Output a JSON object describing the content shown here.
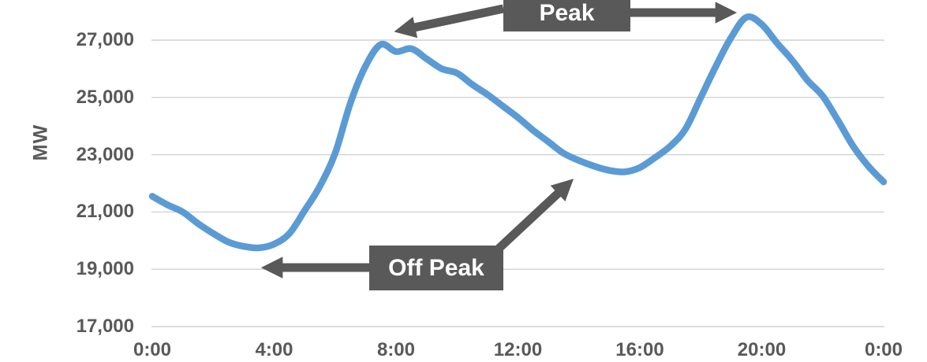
{
  "figure": {
    "background_color": "#FFFFFF",
    "text_color": "#595959",
    "gridline_color": "#D2D2D2"
  },
  "chart_data": {
    "type": "line",
    "title": "",
    "xlabel": "",
    "ylabel": "MW",
    "x_unit": "time of day (hours)",
    "grid": "horizontal",
    "legend": "none",
    "line_color": "#5B9BD5",
    "annotation_color": "#595959",
    "xlim_hours": [
      0,
      24
    ],
    "ylim": [
      17000,
      28500
    ],
    "x_tick_labels": [
      "0:00",
      "4:00",
      "8:00",
      "12:00",
      "16:00",
      "20:00",
      "0:00"
    ],
    "x_tick_hours": [
      0,
      4,
      8,
      12,
      16,
      20,
      24
    ],
    "y_tick_labels": [
      "27,000",
      "25,000",
      "23,000",
      "21,000",
      "19,000",
      "17,000"
    ],
    "y_tick_values": [
      27000,
      25000,
      23000,
      21000,
      19000,
      17000
    ],
    "series": [
      {
        "x_hours": [
          0,
          0.5,
          1,
          1.5,
          2,
          2.5,
          3,
          3.5,
          4,
          4.5,
          5,
          5.5,
          6,
          6.5,
          7,
          7.5,
          8,
          8.5,
          9,
          9.5,
          10,
          10.5,
          11,
          11.5,
          12,
          12.5,
          13,
          13.5,
          14,
          14.5,
          15,
          15.5,
          16,
          16.5,
          17,
          17.5,
          18,
          18.5,
          19,
          19.5,
          20,
          20.5,
          21,
          21.5,
          22,
          22.5,
          23,
          23.5,
          24
        ],
        "values_mw": [
          21550,
          21250,
          21000,
          20600,
          20250,
          19950,
          19800,
          19750,
          19880,
          20250,
          21050,
          21900,
          23050,
          24800,
          26100,
          26850,
          26600,
          26700,
          26350,
          26000,
          25850,
          25450,
          25100,
          24700,
          24300,
          23850,
          23450,
          23050,
          22800,
          22600,
          22450,
          22400,
          22550,
          22900,
          23300,
          23900,
          25000,
          26100,
          27100,
          27800,
          27550,
          26900,
          26300,
          25600,
          25050,
          24200,
          23300,
          22600,
          22050
        ]
      }
    ],
    "annotations": [
      {
        "label": "Peak",
        "arrow_targets_hours": [
          7.5,
          19.5
        ]
      },
      {
        "label": "Off Peak",
        "arrow_targets_hours": [
          3.0,
          14.5
        ]
      }
    ]
  }
}
